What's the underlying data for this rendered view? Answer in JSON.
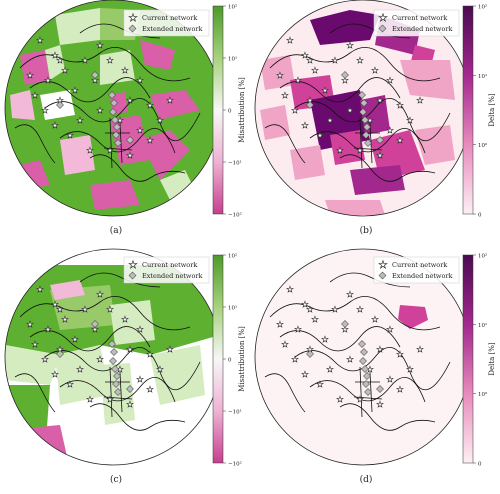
{
  "legend": {
    "current_network": "Current network",
    "extended_network": "Extended network"
  },
  "colors": {
    "green_strong": "#5db030",
    "green_mid": "#98ca6a",
    "green_light": "#d5ebc0",
    "pink_strong": "#d85fa8",
    "pink_light": "#f2bad8",
    "purple_dark": "#6a0a6e",
    "purple_mid": "#a3288e",
    "magenta": "#d0419a",
    "pink_delta": "#f0a4c6",
    "pink_pale": "#fcecef"
  },
  "panels": [
    {
      "id": "a",
      "caption": "(a)",
      "colorbar": {
        "label": "Misattribution [%]",
        "ticks": [
          "10²",
          "10¹",
          "0",
          "−10¹",
          "−10²"
        ],
        "gradient": [
          "#4d9a2a",
          "#a7d27e",
          "#f7f7f7",
          "#eeb2d4",
          "#c63f8f"
        ]
      }
    },
    {
      "id": "b",
      "caption": "(b)",
      "colorbar": {
        "label": "Delta [%]",
        "ticks": [
          "10²",
          "10¹",
          "10⁰",
          "0"
        ],
        "gradient": [
          "#4a0b4f",
          "#a3288e",
          "#e88bbd",
          "#fdf0f3"
        ]
      }
    },
    {
      "id": "c",
      "caption": "(c)",
      "colorbar": {
        "label": "Misattribution [%]",
        "ticks": [
          "10²",
          "10¹",
          "0",
          "−10¹",
          "−10²"
        ],
        "gradient": [
          "#4d9a2a",
          "#a7d27e",
          "#f7f7f7",
          "#eeb2d4",
          "#c63f8f"
        ]
      }
    },
    {
      "id": "d",
      "caption": "(d)",
      "colorbar": {
        "label": "Delta [%]",
        "ticks": [
          "10²",
          "10¹",
          "10⁰",
          "0"
        ],
        "gradient": [
          "#4a0b4f",
          "#a3288e",
          "#e88bbd",
          "#fdf0f3"
        ]
      }
    }
  ]
}
